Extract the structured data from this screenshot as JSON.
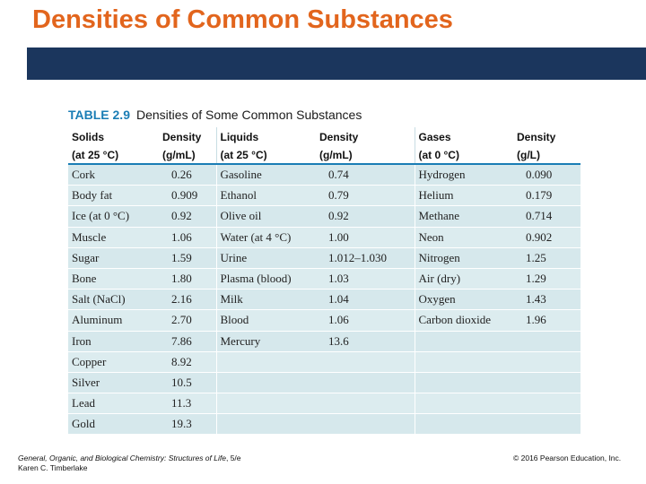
{
  "slide": {
    "title": "Densities of Common Substances",
    "accent_color": "#e2651d",
    "band_color": "#1b365d"
  },
  "table": {
    "number": "TABLE 2.9",
    "caption": "Densities of Some Common Substances",
    "headers": [
      {
        "line1": "Solids",
        "line2": "(at 25 °C)"
      },
      {
        "line1": "Density",
        "line2": "(g/mL)"
      },
      {
        "line1": "Liquids",
        "line2": "(at 25 °C)"
      },
      {
        "line1": "Density",
        "line2": "(g/mL)"
      },
      {
        "line1": "Gases",
        "line2": "(at 0 °C)"
      },
      {
        "line1": "Density",
        "line2": "(g/L)"
      }
    ],
    "rows": [
      [
        "Cork",
        "0.26",
        "Gasoline",
        "0.74",
        "Hydrogen",
        "0.090"
      ],
      [
        "Body fat",
        "0.909",
        "Ethanol",
        "0.79",
        "Helium",
        "0.179"
      ],
      [
        "Ice (at 0 °C)",
        "0.92",
        "Olive oil",
        "0.92",
        "Methane",
        "0.714"
      ],
      [
        "Muscle",
        "1.06",
        "Water (at 4 °C)",
        "1.00",
        "Neon",
        "0.902"
      ],
      [
        "Sugar",
        "1.59",
        "Urine",
        "1.012–1.030",
        "Nitrogen",
        "1.25"
      ],
      [
        "Bone",
        "1.80",
        "Plasma (blood)",
        "1.03",
        "Air (dry)",
        "1.29"
      ],
      [
        "Salt (NaCl)",
        "2.16",
        "Milk",
        "1.04",
        "Oxygen",
        "1.43"
      ],
      [
        "Aluminum",
        "2.70",
        "Blood",
        "1.06",
        "Carbon dioxide",
        "1.96"
      ],
      [
        "Iron",
        "7.86",
        "Mercury",
        "13.6",
        "",
        ""
      ],
      [
        "Copper",
        "8.92",
        "",
        "",
        "",
        ""
      ],
      [
        "Silver",
        "10.5",
        "",
        "",
        "",
        ""
      ],
      [
        "Lead",
        "11.3",
        "",
        "",
        "",
        ""
      ],
      [
        "Gold",
        "19.3",
        "",
        "",
        "",
        ""
      ]
    ]
  },
  "footer": {
    "book_title": "General, Organic, and Biological Chemistry: Structures of Life",
    "edition": ", 5/e",
    "author": "Karen C. Timberlake",
    "copyright": "© 2016 Pearson Education, Inc."
  }
}
